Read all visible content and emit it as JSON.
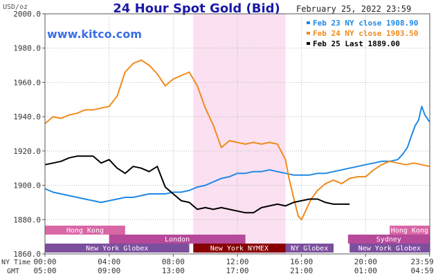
{
  "chart_data": {
    "type": "line",
    "title": "24 Hour Spot Gold (Bid)",
    "date_label": "February 25, 2022 23:59",
    "y_unit": "USD/oz",
    "watermark": "www.kitco.com",
    "ylim": [
      1860,
      2000
    ],
    "xlim": [
      0,
      24
    ],
    "y_ticks": [
      {
        "v": 2000,
        "label": "2000.0"
      },
      {
        "v": 1980,
        "label": "1980.0"
      },
      {
        "v": 1960,
        "label": "1960.0"
      },
      {
        "v": 1940,
        "label": "1940.0"
      },
      {
        "v": 1920,
        "label": "1920.0"
      },
      {
        "v": 1900,
        "label": "1900.0"
      },
      {
        "v": 1880,
        "label": "1880.0"
      },
      {
        "v": 1860,
        "label": "1860.0"
      }
    ],
    "x_tick_rows": {
      "ny_label": "NY Time",
      "gmt_label": "GMT",
      "ticks": [
        {
          "x": 0,
          "ny": "00:00",
          "gmt": "05:00"
        },
        {
          "x": 4,
          "ny": "04:00",
          "gmt": "09:00"
        },
        {
          "x": 8,
          "ny": "08:00",
          "gmt": "13:00"
        },
        {
          "x": 12,
          "ny": "12:00",
          "gmt": "17:00"
        },
        {
          "x": 16,
          "ny": "16:00",
          "gmt": "21:00"
        },
        {
          "x": 20,
          "ny": "20:00",
          "gmt": "01:00"
        },
        {
          "x": 23.983,
          "ny": "23:59",
          "gmt": "04:59"
        }
      ]
    },
    "highlight": {
      "start": 9.25,
      "end": 15,
      "color": "#fae0f0"
    },
    "sessions": [
      {
        "row": 1,
        "start": 0,
        "end": 5,
        "label": "Hong Kong",
        "color": "#d966a6"
      },
      {
        "row": 1,
        "start": 21.5,
        "end": 23.983,
        "label": "Hong Kong",
        "color": "#d966a6"
      },
      {
        "row": 2,
        "start": 4,
        "end": 12.5,
        "label": "London",
        "color": "#b6499a"
      },
      {
        "row": 2,
        "start": 18.9,
        "end": 23.983,
        "label": "Sydney",
        "color": "#b6499a"
      },
      {
        "row": 3,
        "start": 0,
        "end": 9,
        "label": "New York Globex",
        "color": "#7c4f9e"
      },
      {
        "row": 3,
        "start": 9.25,
        "end": 15,
        "label": "New York NYMEX",
        "color": "#880000"
      },
      {
        "row": 3,
        "start": 15,
        "end": 18,
        "label": "NY Globex",
        "color": "#7c4f9e"
      },
      {
        "row": 3,
        "start": 19,
        "end": 23.983,
        "label": "New York Globex",
        "color": "#7c4f9e"
      }
    ],
    "series": [
      {
        "name": "Feb 23 NY close 1908.90",
        "color": "#1e88e5",
        "x": [
          0,
          0.5,
          1,
          1.5,
          2,
          2.5,
          3,
          3.5,
          4,
          4.5,
          5,
          5.5,
          6,
          6.5,
          7,
          7.5,
          8,
          8.5,
          9,
          9.5,
          10,
          10.5,
          11,
          11.5,
          12,
          12.5,
          13,
          13.5,
          14,
          14.5,
          15,
          15.5,
          16,
          16.5,
          17,
          17.5,
          18,
          18.5,
          19,
          19.5,
          20,
          20.5,
          21,
          21.5,
          22,
          22.3,
          22.6,
          22.9,
          23.1,
          23.3,
          23.5,
          23.7,
          23.983
        ],
        "y": [
          1898,
          1896,
          1895,
          1894,
          1893,
          1892,
          1891,
          1890,
          1891,
          1892,
          1893,
          1893,
          1894,
          1895,
          1895,
          1895,
          1896,
          1896,
          1897,
          1899,
          1900,
          1902,
          1904,
          1905,
          1907,
          1907,
          1908,
          1908,
          1909,
          1908,
          1907,
          1906,
          1906,
          1906,
          1907,
          1907,
          1908,
          1909,
          1910,
          1911,
          1912,
          1913,
          1914,
          1914,
          1915,
          1918,
          1922,
          1930,
          1935,
          1938,
          1946,
          1941,
          1937
        ]
      },
      {
        "name": "Feb 24 NY close 1903.50",
        "color": "#f08a1c",
        "x": [
          0,
          0.5,
          1,
          1.5,
          2,
          2.5,
          3,
          3.5,
          4,
          4.5,
          5,
          5.5,
          6,
          6.5,
          7,
          7.5,
          8,
          8.5,
          9,
          9.5,
          10,
          10.5,
          11,
          11.5,
          12,
          12.5,
          13,
          13.5,
          14,
          14.5,
          15,
          15.2,
          15.5,
          15.8,
          16,
          16.3,
          16.6,
          17,
          17.5,
          18,
          18.5,
          19,
          19.5,
          20,
          20.5,
          21,
          21.5,
          22,
          22.5,
          23,
          23.5,
          23.983
        ],
        "y": [
          1936,
          1940,
          1939,
          1941,
          1942,
          1944,
          1944,
          1945,
          1946,
          1952,
          1966,
          1971,
          1973,
          1970,
          1965,
          1958,
          1962,
          1964,
          1966,
          1958,
          1945,
          1935,
          1922,
          1926,
          1925,
          1924,
          1925,
          1924,
          1925,
          1924,
          1915,
          1905,
          1893,
          1882,
          1880,
          1886,
          1892,
          1897,
          1901,
          1903,
          1901,
          1904,
          1905,
          1905,
          1909,
          1912,
          1914,
          1913,
          1912,
          1913,
          1912,
          1911
        ]
      },
      {
        "name": "Feb 25 Last 1889.00",
        "color": "#000000",
        "x": [
          0,
          0.5,
          1,
          1.5,
          2,
          2.5,
          3,
          3.5,
          4,
          4.5,
          5,
          5.5,
          6,
          6.5,
          7,
          7.5,
          8,
          8.5,
          9,
          9.5,
          10,
          10.5,
          11,
          11.5,
          12,
          12.5,
          13,
          13.5,
          14,
          14.5,
          15,
          15.5,
          16,
          16.5,
          17,
          17.5,
          18,
          18.5,
          19,
          19.5,
          20,
          20.5,
          21,
          21.5,
          22,
          22.5,
          23,
          23.5,
          23.983
        ],
        "y": [
          1912,
          1913,
          1914,
          1916,
          1917,
          1917,
          1917,
          1913,
          1915,
          1910,
          1907,
          1911,
          1910,
          1908,
          1911,
          1899,
          1895,
          1891,
          1890,
          1886,
          1887,
          1886,
          1887,
          1886,
          1885,
          1884,
          1884,
          1887,
          1888,
          1889,
          1888,
          1890,
          1891,
          1892,
          1892,
          1890,
          1889,
          1889,
          1889,
          null,
          null,
          null,
          null,
          null,
          null,
          null,
          null,
          null,
          null
        ]
      }
    ]
  }
}
